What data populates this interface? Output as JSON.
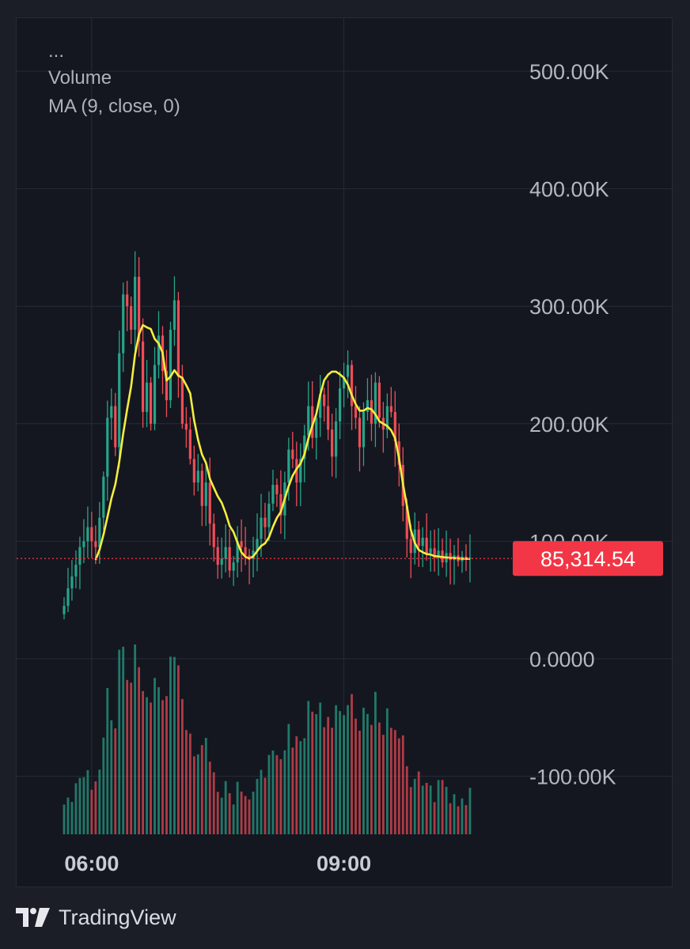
{
  "legend": {
    "dots": "...",
    "series_title": "Volume",
    "indicator": "MA (9, close, 0)"
  },
  "price_badge": "85,314.54",
  "brand": "TradingView",
  "colors": {
    "background": "#141720",
    "up": "#26a489",
    "down": "#ef4d57",
    "ma": "#f5ee3f",
    "badge": "#f23645",
    "grid": "#272b36",
    "axis_text": "#b4b7bf"
  },
  "chart_data": {
    "type": "candlestick",
    "title": "Volume",
    "indicator": "MA (9, close, 0)",
    "y_ticks": [
      {
        "value": 500000,
        "label": "500.00K"
      },
      {
        "value": 400000,
        "label": "400.00K"
      },
      {
        "value": 300000,
        "label": "300.00K"
      },
      {
        "value": 200000,
        "label": "200.00K"
      },
      {
        "value": 100000,
        "label": "100.00K"
      },
      {
        "value": 0,
        "label": "0.0000"
      },
      {
        "value": -100000,
        "label": "-100.00K"
      }
    ],
    "x_ticks": [
      {
        "index": 7,
        "label": "06:00"
      },
      {
        "index": 71,
        "label": "09:00"
      }
    ],
    "ylim": [
      -150000,
      550000
    ],
    "last_value": 85314.54,
    "closes": [
      45000,
      60000,
      70000,
      80000,
      95000,
      100000,
      112000,
      100000,
      95000,
      120000,
      155000,
      205000,
      215000,
      180000,
      260000,
      310000,
      300000,
      280000,
      325000,
      270000,
      210000,
      235000,
      200000,
      250000,
      275000,
      245000,
      220000,
      280000,
      305000,
      240000,
      200000,
      195000,
      170000,
      150000,
      160000,
      130000,
      150000,
      115000,
      95000,
      80000,
      85000,
      95000,
      75000,
      82000,
      100000,
      95000,
      88000,
      85000,
      92000,
      102000,
      120000,
      112000,
      132000,
      148000,
      140000,
      122000,
      150000,
      178000,
      170000,
      150000,
      170000,
      190000,
      215000,
      188000,
      205000,
      225000,
      215000,
      195000,
      172000,
      202000,
      230000,
      240000,
      250000,
      215000,
      205000,
      180000,
      210000,
      220000,
      200000,
      235000,
      205000,
      195000,
      215000,
      210000,
      185000,
      165000,
      130000,
      102000,
      90000,
      110000,
      96000,
      103000,
      90000,
      94000,
      86000,
      92000,
      82000,
      90000,
      84000,
      88000,
      83000,
      87000,
      85000,
      86000
    ],
    "ma": [
      null,
      null,
      null,
      null,
      null,
      null,
      null,
      null,
      84111,
      92889,
      105556,
      120667,
      136333,
      148222,
      167556,
      191667,
      212333,
      231778,
      258556,
      276000,
      283889,
      282000,
      280556,
      272222,
      268333,
      260444,
      236778,
      240111,
      245556,
      241000,
      238889,
      232778,
      225778,
      203000,
      186333,
      173778,
      166667,
      153000,
      145556,
      138222,
      132778,
      123889,
      113111,
      107889,
      98889,
      90556,
      86778,
      85222,
      87111,
      91556,
      96000,
      98222,
      103444,
      112222,
      119889,
      125000,
      136111,
      147111,
      155778,
      161556,
      166111,
      174000,
      187556,
      198333,
      208111,
      224556,
      237000,
      241778,
      244333,
      244333,
      242000,
      239000,
      233333,
      224444,
      216667,
      211111,
      211111,
      213333,
      212222,
      208000,
      202000,
      200000,
      198000,
      194444,
      187778,
      170556,
      148611,
      129722,
      109722,
      98611,
      92611,
      90667,
      89111,
      88667,
      87333,
      87000,
      86556,
      86222,
      85889,
      85667,
      85444,
      85222,
      85111,
      85000
    ]
  }
}
